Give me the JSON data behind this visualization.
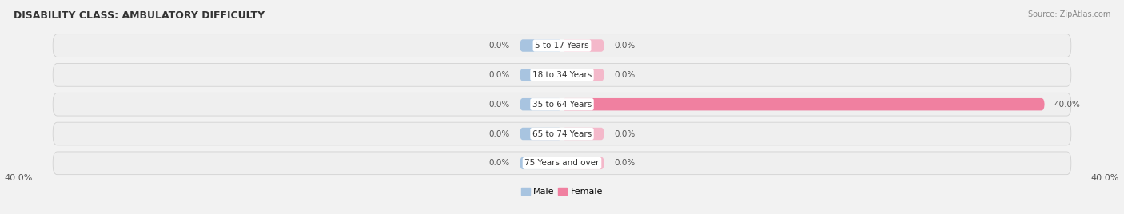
{
  "title": "DISABILITY CLASS: AMBULATORY DIFFICULTY",
  "source": "Source: ZipAtlas.com",
  "categories": [
    "5 to 17 Years",
    "18 to 34 Years",
    "35 to 64 Years",
    "65 to 74 Years",
    "75 Years and over"
  ],
  "male_values": [
    0.0,
    0.0,
    0.0,
    0.0,
    0.0
  ],
  "female_values": [
    0.0,
    0.0,
    40.0,
    0.0,
    0.0
  ],
  "max_value": 40.0,
  "min_bar_size": 3.5,
  "male_color": "#a8c4e0",
  "female_color": "#f080a0",
  "female_small_color": "#f4b8ca",
  "bar_bg_color": "#e8e8e8",
  "fig_bg_color": "#f2f2f2",
  "label_color": "#555555",
  "title_color": "#333333",
  "legend_male_color": "#a8c4e0",
  "legend_female_color": "#f080a0",
  "figsize": [
    14.06,
    2.68
  ],
  "dpi": 100
}
